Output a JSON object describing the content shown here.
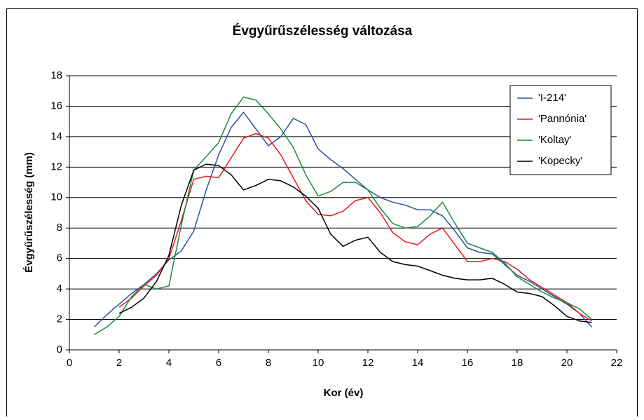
{
  "chart_data": {
    "type": "line",
    "title": "Évgyűrűszélesség változása",
    "x_label": "Kor (év)",
    "y_label": "Évgyűrűszélesség (mm)",
    "x": [
      1,
      1.5,
      2,
      2.5,
      3,
      3.5,
      4,
      4.5,
      5,
      5.5,
      6,
      6.5,
      7,
      7.5,
      8,
      8.5,
      9,
      9.5,
      10,
      10.5,
      11,
      11.5,
      12,
      12.5,
      13,
      13.5,
      14,
      14.5,
      15,
      15.5,
      16,
      16.5,
      17,
      17.5,
      18,
      18.5,
      19,
      19.5,
      20,
      20.5,
      21
    ],
    "series": [
      {
        "name": "'I-214'",
        "color": "#2f4fa0",
        "values": [
          1.5,
          2.3,
          3.0,
          3.7,
          4.3,
          5.0,
          5.9,
          6.5,
          7.8,
          10.5,
          12.8,
          14.6,
          15.6,
          14.5,
          13.4,
          14.0,
          15.2,
          14.8,
          13.2,
          12.5,
          11.9,
          11.2,
          10.5,
          10.0,
          9.7,
          9.5,
          9.2,
          9.2,
          8.8,
          7.8,
          6.7,
          6.4,
          6.3,
          5.6,
          4.9,
          4.5,
          4.0,
          3.5,
          3.0,
          2.4,
          1.5
        ]
      },
      {
        "name": "'Pannónia'",
        "color": "#e8161b",
        "values": [
          null,
          null,
          2.8,
          3.4,
          4.2,
          4.9,
          6.0,
          8.5,
          11.2,
          11.4,
          11.3,
          12.6,
          13.9,
          14.2,
          13.9,
          12.8,
          11.3,
          9.8,
          8.9,
          8.8,
          9.1,
          9.8,
          10.0,
          9.0,
          7.7,
          7.1,
          6.9,
          7.6,
          8.0,
          6.9,
          5.8,
          5.8,
          6.0,
          5.8,
          5.3,
          4.6,
          4.1,
          3.6,
          3.1,
          2.4,
          1.9
        ]
      },
      {
        "name": "'Koltay'",
        "color": "#1a8a3a",
        "values": [
          1.0,
          1.5,
          2.2,
          3.5,
          4.3,
          4.0,
          4.2,
          8.2,
          11.8,
          12.7,
          13.6,
          15.5,
          16.6,
          16.4,
          15.5,
          14.5,
          13.3,
          11.5,
          10.1,
          10.4,
          11.0,
          11.0,
          10.5,
          9.3,
          8.3,
          8.0,
          8.1,
          8.8,
          9.7,
          8.3,
          7.0,
          6.7,
          6.4,
          5.7,
          4.8,
          4.3,
          3.8,
          3.4,
          3.1,
          2.7,
          2.0
        ]
      },
      {
        "name": "'Kopecky'",
        "color": "#000000",
        "values": [
          null,
          null,
          2.4,
          2.8,
          3.4,
          4.5,
          6.2,
          9.5,
          11.8,
          12.2,
          12.1,
          11.5,
          10.5,
          10.8,
          11.2,
          11.1,
          10.7,
          10.1,
          9.3,
          7.6,
          6.8,
          7.2,
          7.4,
          6.4,
          5.8,
          5.6,
          5.5,
          5.2,
          4.9,
          4.7,
          4.6,
          4.6,
          4.7,
          4.3,
          3.8,
          3.7,
          3.5,
          2.9,
          2.2,
          1.9,
          1.8
        ]
      }
    ],
    "xlim": [
      0,
      22
    ],
    "xticks": [
      0,
      2,
      4,
      6,
      8,
      10,
      12,
      14,
      16,
      18,
      20,
      22
    ],
    "ylim": [
      0,
      18
    ],
    "yticks": [
      0,
      2,
      4,
      6,
      8,
      10,
      12,
      14,
      16,
      18
    ],
    "grid": true,
    "legend": "top-right"
  }
}
